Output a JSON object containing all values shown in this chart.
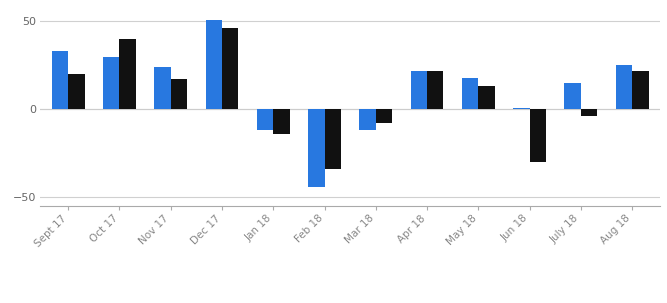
{
  "categories": [
    "Sept 17",
    "Oct 17",
    "Nov 17",
    "Dec 17",
    "Jan 18",
    "Feb 18",
    "Mar 18",
    "Apr 18",
    "May 18",
    "Jun 18",
    "July 18",
    "Aug 18"
  ],
  "fund_returns": [
    33,
    30,
    24,
    51,
    -12,
    -44,
    -12,
    22,
    18,
    0.5,
    15,
    25
  ],
  "industry_average": [
    20,
    40,
    17,
    46,
    -14,
    -34,
    -8,
    22,
    13,
    -30,
    -4,
    22
  ],
  "fund_color": "#2878e0",
  "industry_color": "#111111",
  "ylim": [
    -55,
    57
  ],
  "yticks": [
    -50,
    0,
    50
  ],
  "background_color": "#ffffff",
  "grid_color": "#d0d0d0",
  "bar_width": 0.32
}
